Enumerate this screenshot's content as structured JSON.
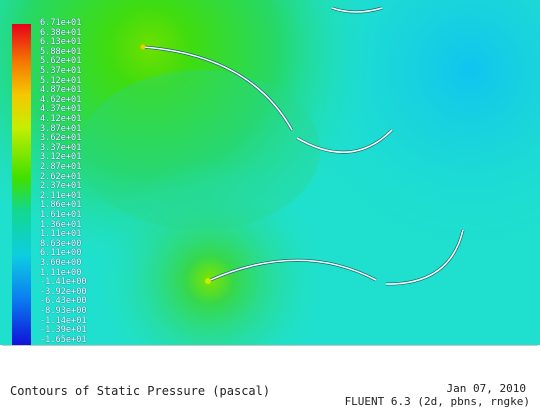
{
  "legend": {
    "labels": [
      "6.71e+01",
      "6.38e+01",
      "6.13e+01",
      "5.88e+01",
      "5.62e+01",
      "5.37e+01",
      "5.12e+01",
      "4.87e+01",
      "4.62e+01",
      "4.37e+01",
      "4.12e+01",
      "3.87e+01",
      "3.62e+01",
      "3.37e+01",
      "3.12e+01",
      "2.87e+01",
      "2.62e+01",
      "2.37e+01",
      "2.11e+01",
      "1.86e+01",
      "1.61e+01",
      "1.36e+01",
      "1.11e+01",
      "8.63e+00",
      "6.11e+00",
      "3.60e+00",
      "1.11e+00",
      "-1.41e+00",
      "-3.92e+00",
      "-6.43e+00",
      "-8.93e+00",
      "-1.14e+01",
      "-1.39e+01",
      "-1.65e+01"
    ],
    "colors": [
      "#e8001a",
      "#f04a00",
      "#f57a00",
      "#f7a300",
      "#f5c800",
      "#e8e400",
      "#c6ee00",
      "#8cf000",
      "#3ee000",
      "#16d860",
      "#10d8a8",
      "#0ecde0",
      "#0aa0f0",
      "#0a6af0",
      "#0a35e8",
      "#1010d8"
    ]
  },
  "footer": {
    "title": "Contours of Static Pressure (pascal)",
    "date": "Jan 07, 2010",
    "version": "FLUENT 6.3 (2d, pbns, rngke)"
  }
}
